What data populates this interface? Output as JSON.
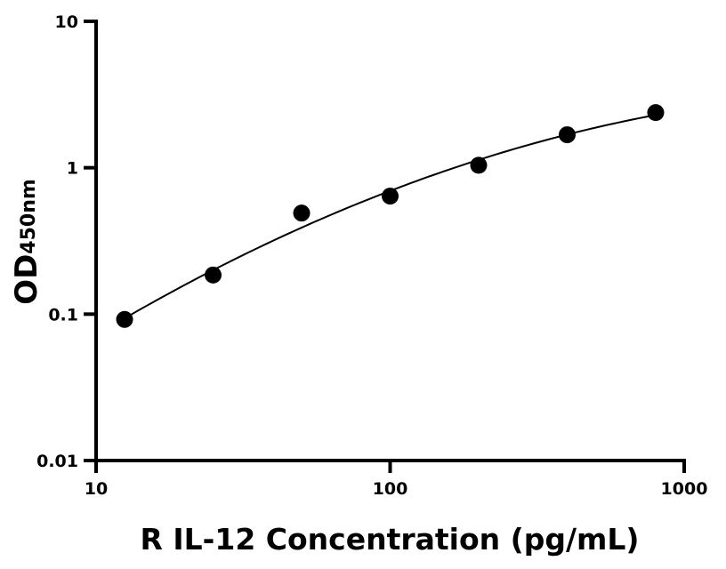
{
  "chart_data": {
    "type": "scatter",
    "xlabel": "R IL-12 Concentration (pg/mL)",
    "ylabel_main": "OD",
    "ylabel_sub": "450nm",
    "x_scale": "log",
    "y_scale": "log",
    "xlim": [
      10,
      1000
    ],
    "ylim": [
      0.01,
      10
    ],
    "x_ticks": [
      10,
      100,
      1000
    ],
    "x_tick_labels": [
      "10",
      "100",
      "1000"
    ],
    "y_ticks": [
      0.01,
      0.1,
      1,
      10
    ],
    "y_tick_labels": [
      "0.01",
      "0.1",
      "1",
      "10"
    ],
    "grid": false,
    "series": [
      {
        "x": [
          12.5,
          25,
          50,
          100,
          200,
          400,
          800
        ],
        "y": [
          0.092,
          0.185,
          0.49,
          0.64,
          1.04,
          1.68,
          2.38
        ],
        "color": "#000000",
        "fit_curve": true
      }
    ]
  }
}
